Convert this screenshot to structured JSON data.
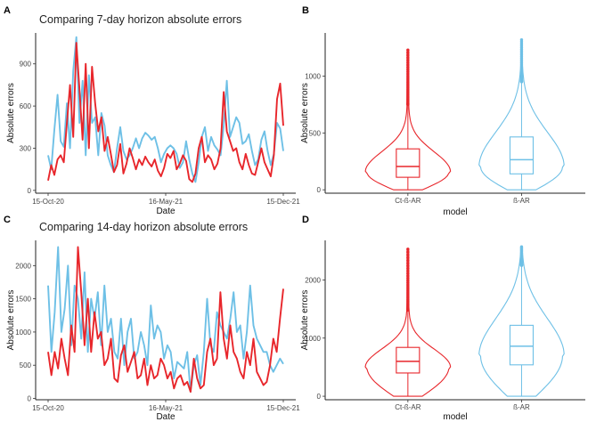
{
  "chart_data": [
    {
      "panel": "A",
      "type": "line",
      "title": "Comparing 7-day horizon absolute errors",
      "xlabel": "Date",
      "ylabel": "Absolute errors",
      "x_ticks": [
        "15-Oct-20",
        "16-May-21",
        "15-Dec-21"
      ],
      "y_ticks": [
        0,
        300,
        600,
        900
      ],
      "ylim": [
        -20,
        1120
      ],
      "grid": false,
      "series": [
        {
          "name": "Ct-ß-AR",
          "color": "#e8262b",
          "values": [
            70,
            180,
            110,
            220,
            250,
            200,
            480,
            750,
            380,
            1050,
            720,
            360,
            900,
            300,
            880,
            620,
            420,
            520,
            280,
            380,
            260,
            130,
            180,
            330,
            120,
            190,
            300,
            230,
            150,
            220,
            180,
            240,
            200,
            170,
            220,
            140,
            100,
            160,
            260,
            230,
            280,
            150,
            190,
            250,
            210,
            80,
            60,
            120,
            300,
            380,
            200,
            250,
            220,
            150,
            190,
            300,
            700,
            420,
            350,
            280,
            300,
            200,
            150,
            260,
            180,
            120,
            110,
            200,
            300,
            200,
            150,
            100,
            250,
            650,
            760,
            460
          ]
        },
        {
          "name": "ß-AR",
          "color": "#6ec0e6",
          "values": [
            250,
            150,
            430,
            680,
            350,
            310,
            620,
            300,
            850,
            1090,
            480,
            780,
            250,
            820,
            480,
            520,
            250,
            550,
            460,
            250,
            180,
            130,
            300,
            450,
            280,
            220,
            250,
            300,
            370,
            300,
            370,
            410,
            390,
            360,
            380,
            300,
            200,
            260,
            300,
            320,
            300,
            260,
            160,
            200,
            350,
            220,
            120,
            60,
            200,
            380,
            450,
            280,
            380,
            320,
            290,
            250,
            460,
            780,
            380,
            450,
            520,
            480,
            330,
            350,
            400,
            280,
            180,
            220,
            360,
            420,
            280,
            180,
            260,
            480,
            440,
            280
          ]
        }
      ]
    },
    {
      "panel": "B",
      "type": "violin",
      "xlabel": "model",
      "ylabel": "Absolute errors",
      "y_ticks": [
        0,
        500,
        1000
      ],
      "ylim": [
        -30,
        1380
      ],
      "categories": [
        "Ct-ß-AR",
        "ß-AR"
      ],
      "colors": [
        "#e8262b",
        "#6ec0e6"
      ],
      "stats": [
        {
          "min": 0,
          "q1": 110,
          "median": 205,
          "q3": 360,
          "whisker_high": 750,
          "max": 1230
        },
        {
          "min": 0,
          "q1": 140,
          "median": 265,
          "q3": 465,
          "whisker_high": 950,
          "max": 1320
        }
      ]
    },
    {
      "panel": "C",
      "type": "line",
      "title": "Comparing 14-day horizon absolute errors",
      "xlabel": "Date",
      "ylabel": "Absolute errors",
      "x_ticks": [
        "15-Oct-20",
        "16-May-21",
        "15-Dec-21"
      ],
      "y_ticks": [
        0,
        500,
        1000,
        1500,
        2000
      ],
      "ylim": [
        -20,
        2380
      ],
      "grid": false,
      "series": [
        {
          "name": "Ct-ß-AR",
          "color": "#e8262b",
          "values": [
            700,
            350,
            700,
            450,
            900,
            600,
            350,
            1100,
            700,
            2280,
            1600,
            800,
            1500,
            700,
            1300,
            900,
            1000,
            500,
            600,
            900,
            300,
            250,
            650,
            800,
            400,
            550,
            700,
            300,
            350,
            600,
            200,
            500,
            300,
            350,
            600,
            500,
            300,
            400,
            150,
            300,
            350,
            200,
            250,
            100,
            600,
            300,
            150,
            200,
            700,
            900,
            500,
            600,
            1600,
            900,
            600,
            1100,
            700,
            600,
            400,
            300,
            700,
            500,
            900,
            400,
            300,
            200,
            250,
            500,
            900,
            700,
            1200,
            1650
          ]
        },
        {
          "name": "ß-AR",
          "color": "#6ec0e6",
          "values": [
            1700,
            700,
            1300,
            2280,
            1000,
            1350,
            2000,
            800,
            1700,
            1500,
            900,
            1900,
            700,
            1500,
            1200,
            1600,
            800,
            1700,
            1000,
            1200,
            700,
            600,
            1200,
            500,
            1000,
            1200,
            600,
            700,
            1000,
            800,
            500,
            1400,
            900,
            1100,
            1000,
            600,
            800,
            700,
            300,
            550,
            500,
            450,
            700,
            100,
            500,
            650,
            200,
            700,
            1500,
            800,
            700,
            1300,
            1100,
            1000,
            900,
            1200,
            1600,
            1000,
            1100,
            600,
            1000,
            1700,
            1100,
            900,
            800,
            700,
            700,
            500,
            400,
            500,
            600,
            520
          ]
        }
      ]
    },
    {
      "panel": "D",
      "type": "violin",
      "xlabel": "model",
      "ylabel": "Absolute errors",
      "y_ticks": [
        0,
        1000,
        2000
      ],
      "ylim": [
        -60,
        2680
      ],
      "categories": [
        "Ct-ß-AR",
        "ß-AR"
      ],
      "colors": [
        "#e8262b",
        "#6ec0e6"
      ],
      "stats": [
        {
          "min": 0,
          "q1": 400,
          "median": 600,
          "q3": 840,
          "whisker_high": 1480,
          "max": 2530
        },
        {
          "min": 0,
          "q1": 540,
          "median": 860,
          "q3": 1220,
          "whisker_high": 2250,
          "max": 2570
        }
      ]
    }
  ]
}
